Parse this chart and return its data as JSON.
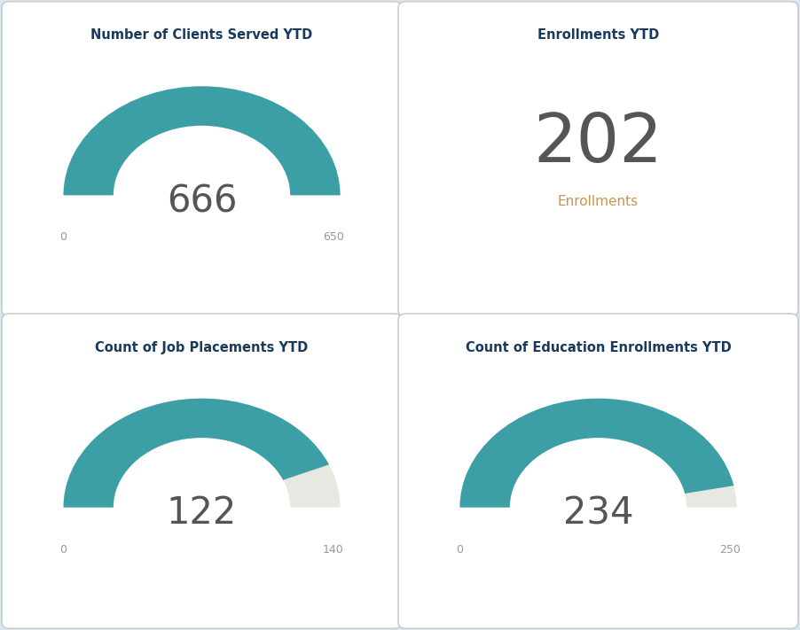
{
  "panels": [
    {
      "title": "Number of Clients Served YTD",
      "type": "gauge",
      "value": 666,
      "goal": 650,
      "label_min": "0",
      "label_max": "650",
      "exceeds_goal": true
    },
    {
      "title": "Enrollments YTD",
      "type": "number",
      "value": 202,
      "sublabel": "Enrollments"
    },
    {
      "title": "Count of Job Placements YTD",
      "type": "gauge",
      "value": 122,
      "goal": 140,
      "label_min": "0",
      "label_max": "140",
      "exceeds_goal": false
    },
    {
      "title": "Count of Education Enrollments YTD",
      "type": "gauge",
      "value": 234,
      "goal": 250,
      "label_min": "0",
      "label_max": "250",
      "exceeds_goal": false
    }
  ],
  "gauge_color": "#3d9fa6",
  "gauge_bg_color": "#e8e8e2",
  "title_color": "#1a3a5c",
  "value_color": "#555555",
  "sublabel_color": "#c8964a",
  "min_max_color": "#999999",
  "background_color": "#ffffff",
  "border_color": "#cccccc",
  "outer_bg_color": "#d8e8f0"
}
